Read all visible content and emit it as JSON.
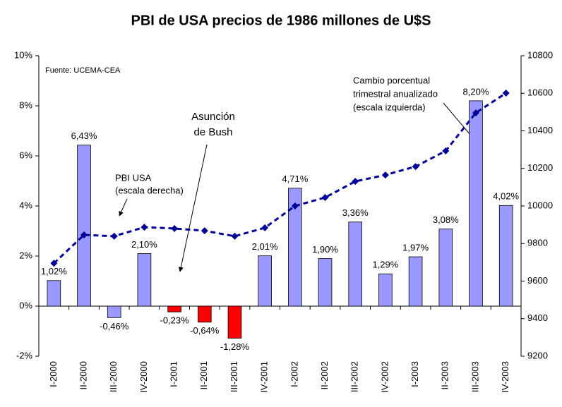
{
  "chart_data": {
    "type": "bar-line",
    "title": "PBI de USA precios de 1986 millones de U$S",
    "categories": [
      "I-2000",
      "II-2000",
      "III-2000",
      "IV-2000",
      "I-2001",
      "II-2001",
      "III-2001",
      "IV-2001",
      "I-2002",
      "II-2002",
      "III-2002",
      "IV-2002",
      "I-2003",
      "II-2003",
      "III-2003",
      "IV-2003"
    ],
    "series": [
      {
        "type": "bar",
        "values": [
          1.02,
          6.43,
          -0.46,
          2.1,
          -0.23,
          -0.64,
          -1.28,
          2.01,
          4.71,
          1.9,
          3.36,
          1.29,
          1.97,
          3.08,
          8.2,
          4.02
        ],
        "value_labels": [
          "1,02%",
          "6,43%",
          "-0,46%",
          "2,10%",
          "-0,23%",
          "-0,64%",
          "-1,28%",
          "2,01%",
          "4,71%",
          "1,90%",
          "3,36%",
          "1,29%",
          "1,97%",
          "3,08%",
          "8,20%",
          "4,02%"
        ],
        "colors": [
          "#9999ff",
          "#9999ff",
          "#9999ff",
          "#9999ff",
          "#ff0000",
          "#ff0000",
          "#ff0000",
          "#9999ff",
          "#9999ff",
          "#9999ff",
          "#9999ff",
          "#9999ff",
          "#9999ff",
          "#9999ff",
          "#9999ff",
          "#9999ff"
        ]
      },
      {
        "type": "line",
        "axis": "y2",
        "color": "#000099",
        "values": [
          9695,
          9846,
          9839,
          9887,
          9880,
          9868,
          9839,
          9884,
          10000,
          10045,
          10131,
          10165,
          10210,
          10293,
          10496,
          10601
        ]
      }
    ],
    "ylim": [
      -2,
      10
    ],
    "yticks": [
      {
        "value": -2,
        "label": "-2%"
      },
      {
        "value": 0,
        "label": "0%"
      },
      {
        "value": 2,
        "label": "2%"
      },
      {
        "value": 4,
        "label": "4%"
      },
      {
        "value": 6,
        "label": "6%"
      },
      {
        "value": 8,
        "label": "8%"
      },
      {
        "value": 10,
        "label": "10%"
      }
    ],
    "y2lim": [
      9200,
      10800
    ],
    "y2ticks": [
      9200,
      9400,
      9600,
      9800,
      10000,
      10200,
      10400,
      10600,
      10800
    ],
    "annotations": [
      [
        "Fuente: UCEMA-CEA"
      ],
      [
        "Asunción",
        "de Bush"
      ],
      [
        "PBI  USA",
        "(escala derecha)"
      ],
      [
        "Cambio porcentual",
        "trimestral  anualizado",
        "(escala izquierda)"
      ]
    ]
  }
}
